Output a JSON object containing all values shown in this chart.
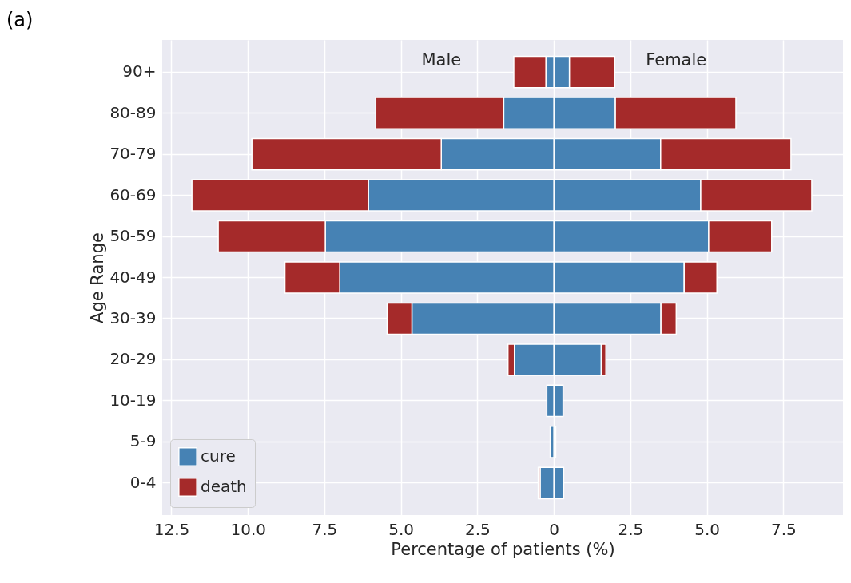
{
  "chart_data": {
    "type": "bar",
    "orientation": "horizontal",
    "stacked": true,
    "title": "(a)",
    "xlabel": "Percentage of patients (%)",
    "ylabel": "Age Range",
    "categories": [
      "90+",
      "80-89",
      "70-79",
      "60-69",
      "50-59",
      "40-49",
      "30-39",
      "20-29",
      "10-19",
      "5-9",
      "0-4"
    ],
    "series": [
      {
        "name": "cure",
        "color": "#4682b4",
        "values": [
          0.51,
          2.01,
          3.49,
          4.8,
          5.06,
          4.26,
          3.5,
          1.55,
          0.3,
          0.06,
          0.32
        ]
      },
      {
        "name": "death",
        "color": "#a52a2a",
        "values": [
          1.48,
          3.94,
          4.26,
          3.63,
          2.06,
          1.07,
          0.5,
          0.15,
          null,
          null,
          null
        ]
      },
      {
        "color": "#4682b4",
        "values": [
          -0.26,
          -1.64,
          -3.68,
          -6.06,
          -7.47,
          -7.0,
          -4.64,
          -1.29,
          -0.23,
          -0.12,
          -0.45
        ]
      },
      {
        "color": "#a52a2a",
        "values": [
          -1.05,
          -4.18,
          -6.19,
          -5.77,
          -3.5,
          -1.79,
          -0.81,
          -0.21,
          null,
          null,
          -0.06
        ]
      }
    ],
    "xlim": [
      -12.8,
      9.45
    ],
    "xticks": [
      {
        "value": -12.5,
        "label": "12.5"
      },
      {
        "value": -10,
        "label": "10.0"
      },
      {
        "value": -7.5,
        "label": "7.5"
      },
      {
        "value": -5,
        "label": "5.0"
      },
      {
        "value": -2.5,
        "label": "2.5"
      },
      0,
      {
        "value": 2.5,
        "label": "2.5"
      },
      {
        "value": 5,
        "label": "5.0"
      },
      {
        "value": 7.5,
        "label": "7.5"
      }
    ],
    "annotations": [
      "Male",
      "Female"
    ],
    "grid": true,
    "legend": "bottom left"
  }
}
